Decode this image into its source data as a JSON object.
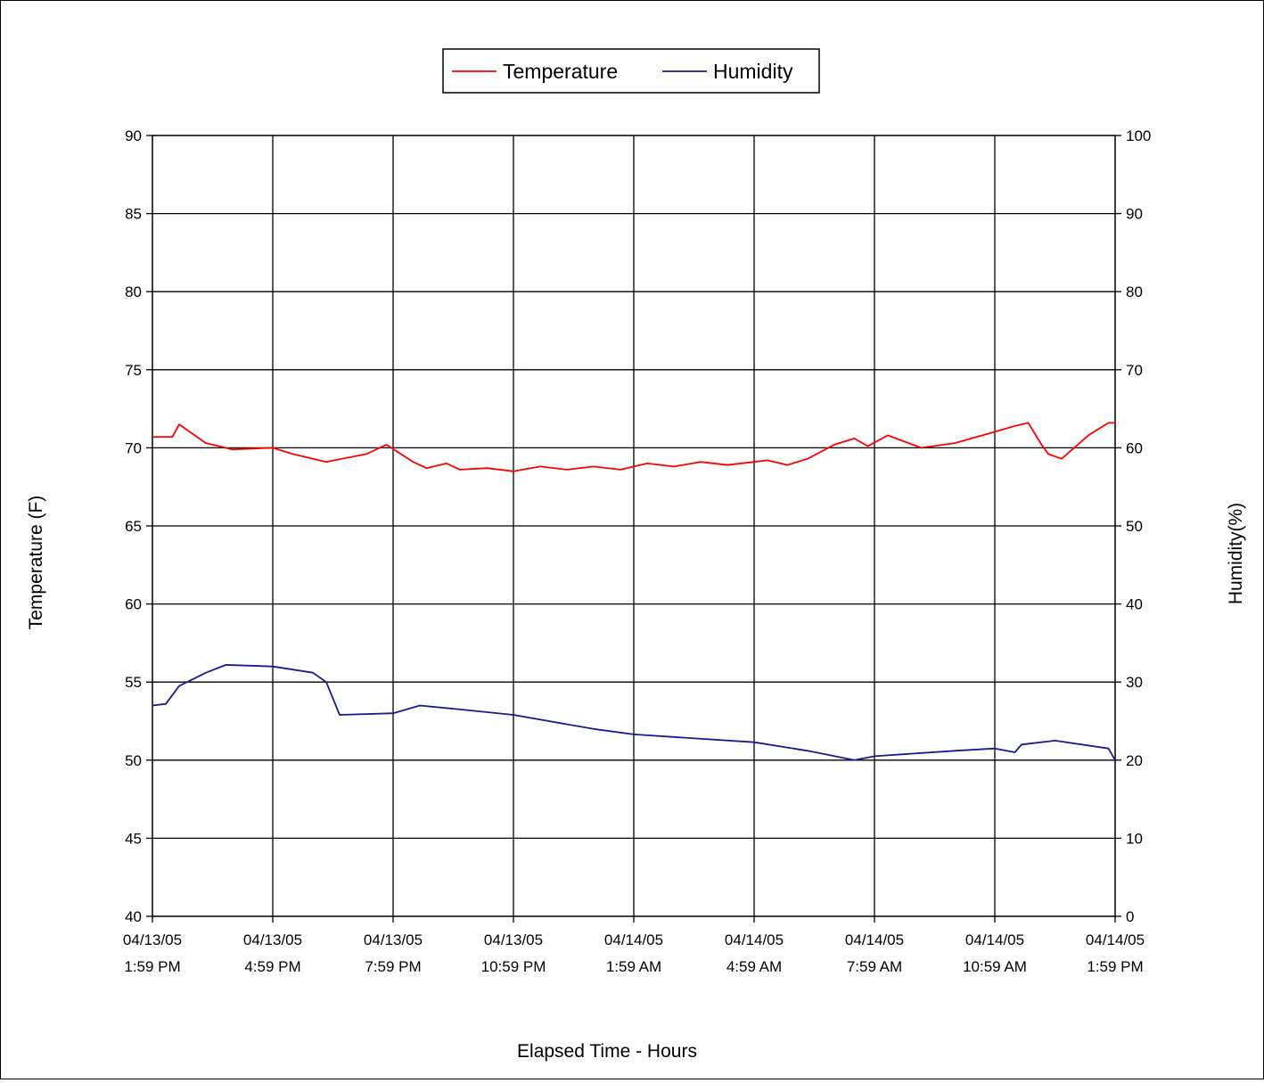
{
  "chart_data": {
    "type": "line",
    "title": "",
    "xlabel": "Elapsed Time - Hours",
    "ylabel": "Temperature (F)",
    "y2label": "Humidity(%)",
    "ylim": [
      40,
      90
    ],
    "y2lim": [
      0,
      100
    ],
    "yticks": [
      "40",
      "45",
      "50",
      "55",
      "60",
      "65",
      "70",
      "75",
      "80",
      "85",
      "90"
    ],
    "y2ticks": [
      "0",
      "10",
      "20",
      "30",
      "40",
      "50",
      "60",
      "70",
      "80",
      "90",
      "100"
    ],
    "xticks": [
      {
        "date": "04/13/05",
        "time": "1:59 PM"
      },
      {
        "date": "04/13/05",
        "time": "4:59 PM"
      },
      {
        "date": "04/13/05",
        "time": "7:59 PM"
      },
      {
        "date": "04/13/05",
        "time": "10:59 PM"
      },
      {
        "date": "04/14/05",
        "time": "1:59 AM"
      },
      {
        "date": "04/14/05",
        "time": "4:59 AM"
      },
      {
        "date": "04/14/05",
        "time": "7:59 AM"
      },
      {
        "date": "04/14/05",
        "time": "10:59 AM"
      },
      {
        "date": "04/14/05",
        "time": "1:59 PM"
      }
    ],
    "grid": true,
    "legend_position": "top-center",
    "series": [
      {
        "name": "Temperature",
        "axis": "left",
        "color": "#ff0000",
        "x": [
          "04/13/05 1:59 PM",
          "04/13/05 2:29 PM",
          "04/13/05 2:39 PM",
          "04/13/05 2:59 PM",
          "04/13/05 3:19 PM",
          "04/13/05 3:59 PM",
          "04/13/05 4:59 PM",
          "04/13/05 5:29 PM",
          "04/13/05 6:19 PM",
          "04/13/05 7:19 PM",
          "04/13/05 7:49 PM",
          "04/13/05 8:29 PM",
          "04/13/05 8:49 PM",
          "04/13/05 9:19 PM",
          "04/13/05 9:39 PM",
          "04/13/05 10:19 PM",
          "04/13/05 10:59 PM",
          "04/13/05 11:39 PM",
          "04/14/05 12:19 AM",
          "04/14/05 12:59 AM",
          "04/14/05 1:39 AM",
          "04/14/05 2:19 AM",
          "04/14/05 2:59 AM",
          "04/14/05 3:39 AM",
          "04/14/05 4:19 AM",
          "04/14/05 4:59 AM",
          "04/14/05 5:19 AM",
          "04/14/05 5:49 AM",
          "04/14/05 6:19 AM",
          "04/14/05 6:59 AM",
          "04/14/05 7:29 AM",
          "04/14/05 7:49 AM",
          "04/14/05 8:19 AM",
          "04/14/05 9:09 AM",
          "04/14/05 9:59 AM",
          "04/14/05 10:49 AM",
          "04/14/05 11:29 AM",
          "04/14/05 11:49 AM",
          "04/14/05 12:09 PM",
          "04/14/05 12:19 PM",
          "04/14/05 12:39 PM",
          "04/14/05 1:19 PM",
          "04/14/05 1:49 PM",
          "04/14/05 1:59 PM"
        ],
        "values": [
          70.7,
          70.7,
          71.5,
          70.9,
          70.3,
          69.9,
          70.0,
          69.6,
          69.1,
          69.6,
          70.2,
          69.1,
          68.7,
          69.0,
          68.6,
          68.7,
          68.5,
          68.8,
          68.6,
          68.8,
          68.6,
          69.0,
          68.8,
          69.1,
          68.9,
          69.1,
          69.2,
          68.9,
          69.3,
          70.2,
          70.6,
          70.1,
          70.8,
          70.0,
          70.3,
          70.9,
          71.4,
          71.6,
          70.2,
          69.6,
          69.3,
          70.8,
          71.6,
          71.6
        ]
      },
      {
        "name": "Humidity",
        "axis": "right",
        "color": "#1a1a8c",
        "x": [
          "04/13/05 1:59 PM",
          "04/13/05 2:19 PM",
          "04/13/05 2:39 PM",
          "04/13/05 3:19 PM",
          "04/13/05 3:49 PM",
          "04/13/05 4:59 PM",
          "04/13/05 5:59 PM",
          "04/13/05 6:19 PM",
          "04/13/05 6:39 PM",
          "04/13/05 7:59 PM",
          "04/13/05 8:39 PM",
          "04/13/05 9:39 PM",
          "04/13/05 10:59 PM",
          "04/14/05 12:59 AM",
          "04/14/05 1:59 AM",
          "04/14/05 4:59 AM",
          "04/14/05 6:19 AM",
          "04/14/05 7:29 AM",
          "04/14/05 7:59 AM",
          "04/14/05 9:59 AM",
          "04/14/05 10:59 AM",
          "04/14/05 11:29 AM",
          "04/14/05 11:39 AM",
          "04/14/05 12:29 PM",
          "04/14/05 1:49 PM",
          "04/14/05 1:59 PM"
        ],
        "values": [
          27.0,
          27.2,
          29.5,
          31.2,
          32.2,
          32.0,
          31.2,
          30.0,
          25.8,
          26.0,
          27.0,
          26.5,
          25.8,
          24.0,
          23.3,
          22.3,
          21.2,
          20.0,
          20.5,
          21.2,
          21.5,
          21.0,
          22.0,
          22.5,
          21.5,
          20.0
        ]
      }
    ]
  }
}
